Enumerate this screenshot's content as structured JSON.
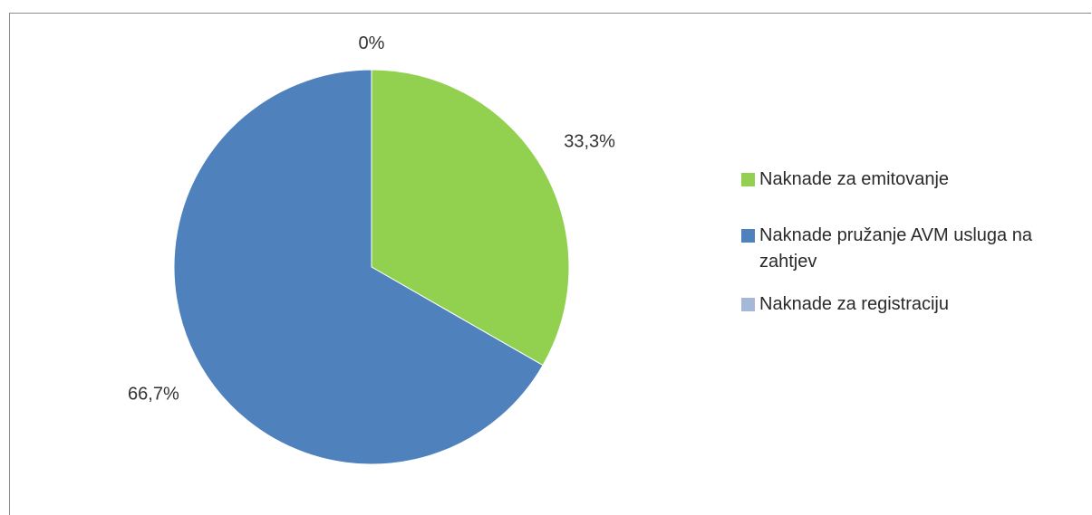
{
  "chart_data": {
    "type": "pie",
    "categories": [
      "Naknade za emitovanje",
      "Naknade pružanje AVM usluga na zahtjev",
      "Naknade za registraciju"
    ],
    "values": [
      33.3,
      66.7,
      0
    ],
    "data_labels": [
      "33,3%",
      "66,7%",
      "0%"
    ],
    "colors": [
      "#92d050",
      "#4f81bd",
      "#a5b8d7"
    ],
    "legend_position": "right",
    "start_angle_deg": 0,
    "direction": "clockwise"
  }
}
